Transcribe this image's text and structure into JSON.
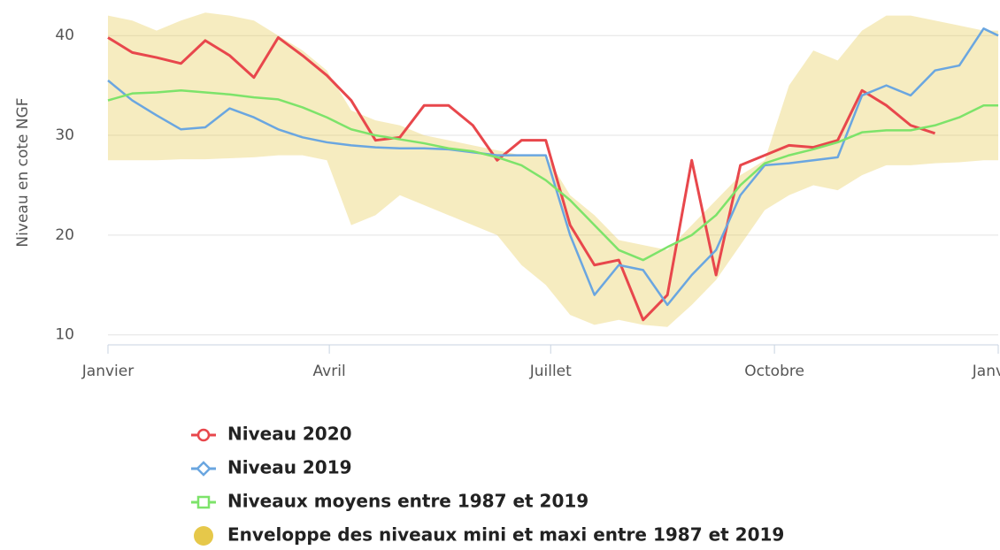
{
  "chart_data": {
    "type": "line",
    "y_label": "Niveau en cote NGF",
    "x": [
      0,
      10,
      20,
      30,
      40,
      50,
      60,
      70,
      80,
      90,
      100,
      110,
      120,
      130,
      140,
      150,
      160,
      170,
      180,
      190,
      200,
      210,
      220,
      230,
      240,
      250,
      260,
      270,
      280,
      290,
      300,
      310,
      320,
      330,
      340,
      350,
      360,
      366
    ],
    "xlim": [
      0,
      366
    ],
    "xticks": [
      {
        "value": 0,
        "label": "Janvier"
      },
      {
        "value": 91,
        "label": "Avril"
      },
      {
        "value": 182,
        "label": "Juillet"
      },
      {
        "value": 274,
        "label": "Octobre"
      },
      {
        "value": 366,
        "label": "Janvier"
      }
    ],
    "ylim": [
      9,
      42.5
    ],
    "yticks": [
      10,
      20,
      30,
      40
    ],
    "grid": true,
    "legend": "bottom",
    "series": [
      {
        "name": "Niveau 2020",
        "color": "#e8474c",
        "marker": "circle",
        "values": [
          39.8,
          38.3,
          37.8,
          37.2,
          39.5,
          38,
          35.8,
          39.8,
          38,
          36,
          33.5,
          29.5,
          29.8,
          33,
          33,
          31,
          27.5,
          29.5,
          29.5,
          21,
          17,
          17.5,
          11.5,
          14,
          27.5,
          16,
          27,
          28,
          29,
          28.8,
          29.5,
          34.5,
          33,
          31,
          30.2,
          null,
          null,
          null
        ]
      },
      {
        "name": "Niveau 2019",
        "color": "#6aa6e0",
        "marker": "diamond",
        "values": [
          35.5,
          33.5,
          32,
          30.6,
          30.8,
          32.7,
          31.8,
          30.6,
          29.8,
          29.3,
          29,
          28.8,
          28.7,
          28.7,
          28.6,
          28.3,
          28,
          28,
          28,
          20,
          14,
          17,
          16.5,
          13,
          16,
          18.5,
          24,
          27,
          27.2,
          27.5,
          27.8,
          34,
          35,
          34,
          36.5,
          37,
          40.7,
          40
        ]
      },
      {
        "name": "Niveaux moyens entre 1987 et 2019",
        "color": "#7de36a",
        "marker": "square",
        "values": [
          33.5,
          34.2,
          34.3,
          34.5,
          34.3,
          34.1,
          33.8,
          33.6,
          32.8,
          31.8,
          30.6,
          30,
          29.6,
          29.2,
          28.7,
          28.4,
          27.8,
          27,
          25.5,
          23.5,
          21,
          18.5,
          17.5,
          18.8,
          20,
          22,
          25,
          27.2,
          28,
          28.6,
          29.3,
          30.3,
          30.5,
          30.5,
          31,
          31.8,
          33,
          33
        ]
      },
      {
        "name": "Enveloppe des niveaux mini et maxi entre 1987 et 2019",
        "color": "#e6c84a",
        "marker": "dot",
        "kind": "range",
        "high": [
          42,
          41.5,
          40.5,
          41.5,
          42.3,
          42,
          41.5,
          40,
          38.5,
          36.5,
          32.5,
          31.5,
          31,
          30,
          29.5,
          29,
          28.5,
          28,
          28,
          24,
          22,
          19.5,
          19,
          18.5,
          21,
          23.5,
          26,
          27.5,
          35,
          38.5,
          37.5,
          40.5,
          42,
          42,
          41.5,
          41,
          40.5,
          40.5
        ],
        "low": [
          27.5,
          27.5,
          27.5,
          27.6,
          27.6,
          27.7,
          27.8,
          28,
          28,
          27.5,
          21,
          22,
          24,
          23,
          22,
          21,
          20,
          17,
          15,
          12,
          11,
          11.5,
          11,
          10.8,
          13,
          15.5,
          19,
          22.5,
          24,
          25,
          24.5,
          26,
          27,
          27,
          27.2,
          27.3,
          27.5,
          27.5
        ]
      }
    ]
  }
}
